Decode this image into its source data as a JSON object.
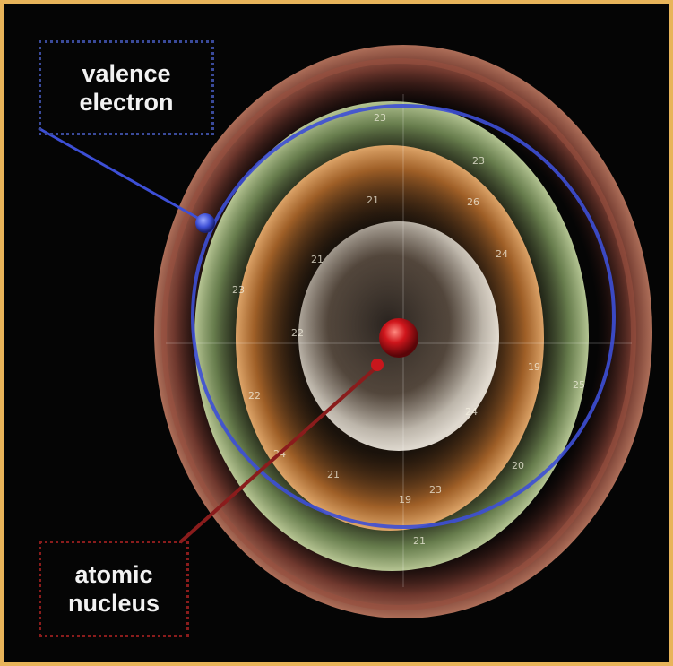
{
  "labels": {
    "valence_line1": "valence",
    "valence_line2": "electron",
    "nucleus_line1": "atomic",
    "nucleus_line2": "nucleus"
  },
  "colors": {
    "frame_border": "#e8b45a",
    "background": "#050505",
    "valence_color": "#3d4fd6",
    "valence_box_border": "#3a4a9a",
    "nucleus_color": "#c8161c",
    "nucleus_box_border": "#8a1c1c",
    "outer_shell": "#a8574a",
    "middle_shell": "#8fae6a",
    "inner_shell": "#d48a3e",
    "core_shell": "#d9d2c6"
  },
  "shell_numbers": [
    "23",
    "23",
    "21",
    "26",
    "21",
    "24",
    "23",
    "22",
    "19",
    "25",
    "24",
    "21",
    "19",
    "23",
    "24",
    "21",
    "22",
    "20"
  ]
}
